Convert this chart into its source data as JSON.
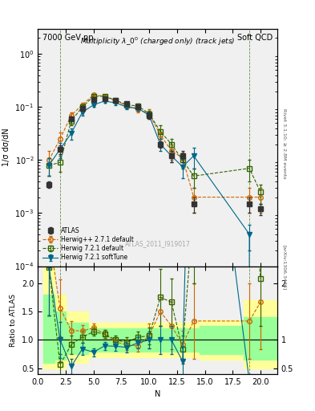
{
  "title_left": "7000 GeV pp",
  "title_right": "Soft QCD",
  "plot_title": "Multiplicity $\\lambda\\_0^0$ (charged only) (track jets)",
  "xlabel": "N",
  "ylabel_main": "1/σ dσ/dN",
  "ylabel_ratio": "Ratio to ATLAS",
  "right_label": "Rivet 3.1.10; ≥ 2.8M events",
  "watermark": "ATLAS_2011_I919017",
  "arxiv": "[arXiv:1306.3436]",
  "atlas_N": [
    1,
    2,
    3,
    4,
    5,
    6,
    7,
    8,
    9,
    10,
    11,
    12,
    13,
    14,
    19,
    20
  ],
  "atlas_y": [
    0.0035,
    0.016,
    0.06,
    0.095,
    0.14,
    0.145,
    0.135,
    0.115,
    0.1,
    0.07,
    0.02,
    0.012,
    0.012,
    0.0015,
    0.0015,
    0.0012
  ],
  "atlas_yerr_lo": [
    0.0005,
    0.003,
    0.005,
    0.005,
    0.005,
    0.005,
    0.005,
    0.005,
    0.005,
    0.01,
    0.003,
    0.003,
    0.003,
    0.0005,
    0.0005,
    0.0003
  ],
  "atlas_yerr_hi": [
    0.0005,
    0.003,
    0.005,
    0.005,
    0.005,
    0.005,
    0.005,
    0.005,
    0.005,
    0.01,
    0.003,
    0.003,
    0.003,
    0.0005,
    0.0005,
    0.0003
  ],
  "hpp_N": [
    1,
    2,
    3,
    4,
    5,
    6,
    7,
    8,
    9,
    10,
    11,
    12,
    13,
    14,
    19,
    20
  ],
  "hpp_y": [
    0.01,
    0.025,
    0.07,
    0.11,
    0.17,
    0.16,
    0.13,
    0.105,
    0.09,
    0.075,
    0.03,
    0.015,
    0.011,
    0.002,
    0.002,
    0.002
  ],
  "hpp_yerr": [
    0.005,
    0.008,
    0.01,
    0.01,
    0.01,
    0.01,
    0.01,
    0.01,
    0.01,
    0.015,
    0.005,
    0.005,
    0.003,
    0.001,
    0.001,
    0.001
  ],
  "h721_N": [
    1,
    2,
    3,
    4,
    5,
    6,
    7,
    8,
    9,
    10,
    11,
    12,
    13,
    14,
    19,
    20
  ],
  "h721_y": [
    0.008,
    0.009,
    0.055,
    0.1,
    0.16,
    0.16,
    0.135,
    0.11,
    0.105,
    0.075,
    0.035,
    0.02,
    0.01,
    0.005,
    0.007,
    0.0025
  ],
  "h721_yerr": [
    0.003,
    0.003,
    0.01,
    0.01,
    0.01,
    0.01,
    0.01,
    0.01,
    0.01,
    0.01,
    0.01,
    0.005,
    0.003,
    0.002,
    0.003,
    0.001
  ],
  "hst_N": [
    1,
    2,
    3,
    4,
    5,
    6,
    7,
    8,
    9,
    10,
    11,
    12,
    13,
    14,
    19,
    20
  ],
  "hst_y": [
    0.008,
    0.016,
    0.032,
    0.08,
    0.11,
    0.13,
    0.12,
    0.1,
    0.095,
    0.07,
    0.02,
    0.012,
    0.0075,
    0.012,
    0.0004,
    0.0
  ],
  "hst_yerr": [
    0.003,
    0.005,
    0.008,
    0.01,
    0.01,
    0.01,
    0.01,
    0.01,
    0.01,
    0.01,
    0.005,
    0.003,
    0.003,
    0.005,
    0.0002,
    0.0
  ],
  "atlas_color": "#333333",
  "hpp_color": "#cc6600",
  "h721_color": "#336600",
  "hst_color": "#006688",
  "bg_color": "#f0f0f0",
  "band_yellow": "#ffff99",
  "band_green": "#99ff99",
  "ylim_main": [
    0.0001,
    3
  ],
  "ylim_ratio": [
    0.4,
    2.3
  ],
  "xlim": [
    0,
    21.5
  ]
}
